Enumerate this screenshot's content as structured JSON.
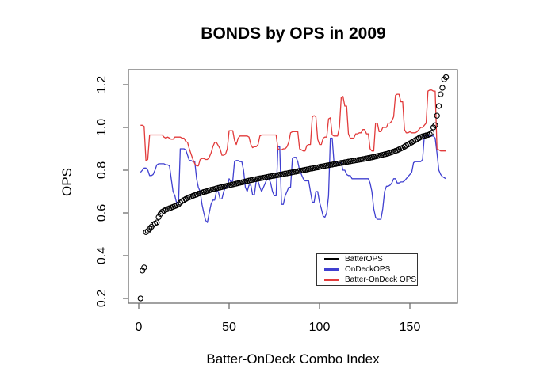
{
  "chart_data": {
    "type": "line",
    "title": "BONDS by OPS in 2009",
    "xlabel": "Batter-OnDeck Combo Index",
    "ylabel": "OPS",
    "xticks": [
      0,
      50,
      100,
      150
    ],
    "yticks": [
      0.2,
      0.4,
      0.6,
      0.8,
      1.0,
      1.2
    ],
    "x_range": [
      1,
      170
    ],
    "ylim": [
      0.2,
      1.2
    ],
    "n_points": 170,
    "grid": "off",
    "legend_position": "inside-bottom-right",
    "frame_color": "#6e6e6e",
    "series": [
      {
        "name": "BatterOPS",
        "color": "#000000",
        "style": "open-circle-points",
        "values": [
          0.2,
          0.33,
          0.345,
          0.51,
          0.515,
          0.525,
          0.535,
          0.545,
          0.55,
          0.555,
          0.58,
          0.595,
          0.605,
          0.61,
          0.615,
          0.618,
          0.622,
          0.625,
          0.628,
          0.632,
          0.635,
          0.64,
          0.648,
          0.655,
          0.66,
          0.665,
          0.67,
          0.673,
          0.676,
          0.68,
          0.683,
          0.686,
          0.69,
          0.692,
          0.695,
          0.698,
          0.7,
          0.703,
          0.705,
          0.708,
          0.71,
          0.712,
          0.715,
          0.717,
          0.719,
          0.721,
          0.723,
          0.725,
          0.727,
          0.729,
          0.731,
          0.733,
          0.735,
          0.737,
          0.739,
          0.741,
          0.743,
          0.745,
          0.747,
          0.749,
          0.751,
          0.753,
          0.755,
          0.757,
          0.758,
          0.76,
          0.762,
          0.763,
          0.765,
          0.766,
          0.768,
          0.77,
          0.771,
          0.773,
          0.774,
          0.776,
          0.777,
          0.779,
          0.78,
          0.782,
          0.784,
          0.785,
          0.787,
          0.788,
          0.79,
          0.792,
          0.793,
          0.795,
          0.797,
          0.798,
          0.8,
          0.802,
          0.803,
          0.805,
          0.807,
          0.808,
          0.81,
          0.812,
          0.813,
          0.815,
          0.817,
          0.818,
          0.82,
          0.822,
          0.823,
          0.825,
          0.826,
          0.828,
          0.829,
          0.831,
          0.832,
          0.834,
          0.835,
          0.837,
          0.838,
          0.84,
          0.841,
          0.843,
          0.844,
          0.846,
          0.847,
          0.849,
          0.85,
          0.852,
          0.853,
          0.855,
          0.857,
          0.858,
          0.86,
          0.862,
          0.864,
          0.866,
          0.868,
          0.87,
          0.872,
          0.874,
          0.876,
          0.878,
          0.881,
          0.884,
          0.887,
          0.89,
          0.893,
          0.897,
          0.901,
          0.905,
          0.91,
          0.915,
          0.92,
          0.925,
          0.93,
          0.935,
          0.94,
          0.945,
          0.95,
          0.955,
          0.958,
          0.96,
          0.963,
          0.965,
          0.968,
          0.975,
          1.0,
          1.01,
          1.055,
          1.1,
          1.155,
          1.185,
          1.225,
          1.235
        ]
      },
      {
        "name": "OnDeckOPS",
        "color": "#4040d0",
        "style": "line",
        "values": [
          0.79,
          0.8,
          0.81,
          0.81,
          0.8,
          0.775,
          0.775,
          0.78,
          0.8,
          0.825,
          0.83,
          0.83,
          0.83,
          0.83,
          0.825,
          0.825,
          0.82,
          0.76,
          0.7,
          0.68,
          0.645,
          0.645,
          0.9,
          0.9,
          0.9,
          0.895,
          0.87,
          0.845,
          0.845,
          0.84,
          0.84,
          0.76,
          0.72,
          0.7,
          0.64,
          0.6,
          0.565,
          0.555,
          0.6,
          0.64,
          0.66,
          0.66,
          0.7,
          0.7,
          0.665,
          0.665,
          0.7,
          0.72,
          0.72,
          0.76,
          0.745,
          0.75,
          0.84,
          0.845,
          0.845,
          0.84,
          0.84,
          0.8,
          0.72,
          0.7,
          0.73,
          0.73,
          0.685,
          0.685,
          0.75,
          0.75,
          0.72,
          0.7,
          0.72,
          0.74,
          0.76,
          0.76,
          0.74,
          0.7,
          0.68,
          0.68,
          0.91,
          0.91,
          0.64,
          0.64,
          0.68,
          0.7,
          0.72,
          0.72,
          0.855,
          0.86,
          0.86,
          0.84,
          0.8,
          0.78,
          0.76,
          0.75,
          0.75,
          0.75,
          0.7,
          0.65,
          0.65,
          0.7,
          0.7,
          0.65,
          0.62,
          0.585,
          0.58,
          0.6,
          0.68,
          0.95,
          0.95,
          0.84,
          0.84,
          0.835,
          0.835,
          0.835,
          0.8,
          0.8,
          0.78,
          0.775,
          0.775,
          0.76,
          0.76,
          0.76,
          0.76,
          0.76,
          0.76,
          0.76,
          0.76,
          0.76,
          0.76,
          0.74,
          0.7,
          0.62,
          0.58,
          0.57,
          0.57,
          0.57,
          0.62,
          0.7,
          0.725,
          0.725,
          0.73,
          0.74,
          0.76,
          0.76,
          0.74,
          0.74,
          0.745,
          0.745,
          0.75,
          0.76,
          0.77,
          0.78,
          0.79,
          0.835,
          0.84,
          0.84,
          0.84,
          0.84,
          0.85,
          0.96,
          0.96,
          0.96,
          0.96,
          0.96,
          0.96,
          0.95,
          0.88,
          0.8,
          0.78,
          0.77,
          0.765,
          0.76
        ]
      },
      {
        "name": "Batter-OnDeck OPS",
        "color": "#e23b3b",
        "style": "line",
        "values": [
          1.01,
          1.01,
          1.005,
          0.845,
          0.85,
          0.965,
          0.965,
          0.965,
          0.965,
          0.965,
          0.965,
          0.965,
          0.965,
          0.955,
          0.95,
          0.955,
          0.95,
          0.945,
          0.945,
          0.955,
          0.955,
          0.955,
          0.955,
          0.95,
          0.95,
          0.935,
          0.93,
          0.9,
          0.875,
          0.85,
          0.83,
          0.82,
          0.82,
          0.85,
          0.855,
          0.855,
          0.85,
          0.85,
          0.86,
          0.88,
          0.91,
          0.93,
          0.93,
          0.915,
          0.9,
          0.87,
          0.87,
          0.875,
          0.9,
          0.985,
          0.985,
          0.985,
          0.94,
          0.92,
          0.95,
          0.96,
          0.96,
          0.96,
          0.96,
          0.96,
          0.955,
          0.92,
          0.905,
          0.91,
          0.91,
          0.92,
          0.96,
          0.965,
          0.965,
          0.965,
          0.965,
          0.965,
          0.965,
          0.965,
          0.965,
          0.965,
          0.9,
          0.895,
          0.895,
          0.9,
          0.9,
          0.91,
          0.93,
          0.975,
          0.98,
          0.98,
          0.98,
          0.98,
          0.9,
          0.895,
          0.89,
          0.89,
          0.915,
          0.92,
          0.92,
          1.05,
          1.055,
          1.05,
          0.945,
          0.92,
          0.92,
          0.95,
          0.955,
          0.955,
          1.04,
          1.045,
          0.965,
          0.96,
          0.96,
          0.96,
          1.0,
          1.14,
          1.145,
          1.1,
          1.1,
          0.97,
          0.95,
          0.95,
          0.95,
          0.97,
          0.97,
          0.975,
          0.975,
          0.99,
          0.99,
          0.97,
          0.97,
          0.9,
          0.89,
          0.89,
          1.02,
          1.02,
          0.98,
          0.98,
          1.0,
          1.0,
          1.0,
          1.02,
          1.02,
          1.03,
          1.05,
          1.15,
          1.155,
          1.155,
          1.12,
          1.12,
          0.99,
          0.975,
          0.975,
          0.98,
          0.975,
          0.975,
          0.975,
          0.98,
          0.99,
          1.0,
          1.0,
          1.01,
          1.02,
          1.17,
          1.175,
          1.175,
          1.17,
          1.17,
          0.9,
          0.895,
          0.89,
          0.89,
          0.89,
          0.89
        ]
      }
    ]
  }
}
